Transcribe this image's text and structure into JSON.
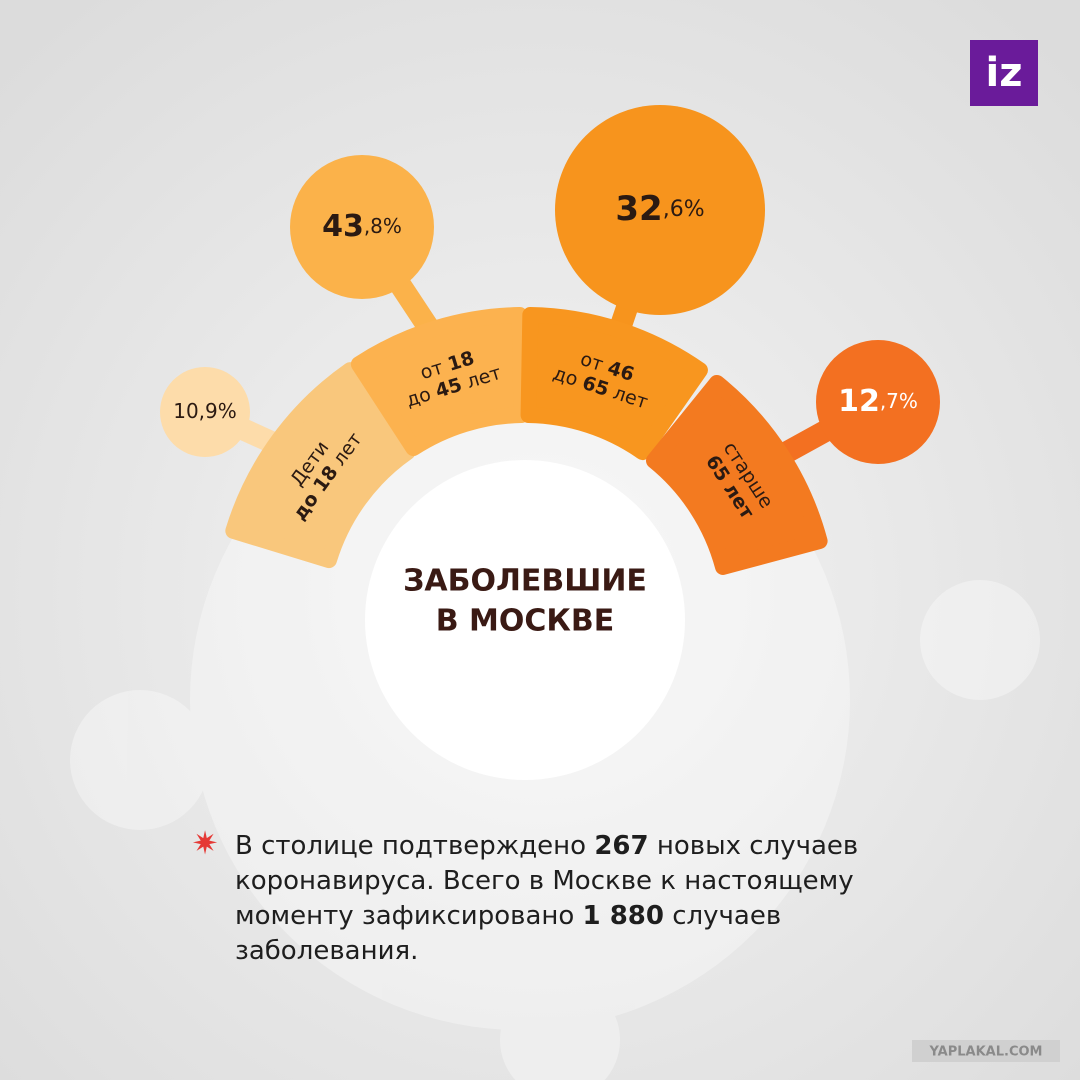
{
  "logo": "iz",
  "title": [
    "ЗАБОЛЕВШИЕ",
    "В МОСКВЕ"
  ],
  "groups": [
    {
      "value": [
        {
          "t": "10,9%",
          "b": false
        }
      ],
      "label": [
        [
          {
            "t": "Дети",
            "b": false
          }
        ],
        [
          {
            "t": "до 18",
            "b": true
          },
          {
            "t": " лет",
            "b": false
          }
        ]
      ]
    },
    {
      "value": [
        {
          "t": "43",
          "b": true
        },
        {
          "t": ",8%",
          "b": false
        }
      ],
      "label": [
        [
          {
            "t": "от ",
            "b": false
          },
          {
            "t": "18",
            "b": true
          }
        ],
        [
          {
            "t": "до ",
            "b": false
          },
          {
            "t": "45",
            "b": true
          },
          {
            "t": " лет",
            "b": false
          }
        ]
      ]
    },
    {
      "value": [
        {
          "t": "32",
          "b": true
        },
        {
          "t": ",6%",
          "b": false
        }
      ],
      "label": [
        [
          {
            "t": "от ",
            "b": false
          },
          {
            "t": "46",
            "b": true
          }
        ],
        [
          {
            "t": "до ",
            "b": false
          },
          {
            "t": "65",
            "b": true
          },
          {
            "t": " лет",
            "b": false
          }
        ]
      ]
    },
    {
      "value": [
        {
          "t": "12",
          "b": true
        },
        {
          "t": ",7%",
          "b": false
        }
      ],
      "label": [
        [
          {
            "t": "старше",
            "b": false
          }
        ],
        [
          {
            "t": "65 лет",
            "b": true
          }
        ]
      ]
    }
  ],
  "note": [
    [
      {
        "t": "В столице подтверждено ",
        "b": false
      },
      {
        "t": "267",
        "b": true
      },
      {
        "t": " новых случаев",
        "b": false
      }
    ],
    [
      {
        "t": "коронавируса. Всего в Москве к настоящему",
        "b": false
      }
    ],
    [
      {
        "t": "моменту зафиксировано ",
        "b": false
      },
      {
        "t": "1 880",
        "b": true
      },
      {
        "t": " случаев",
        "b": false
      }
    ],
    [
      {
        "t": "заболевания.",
        "b": false
      }
    ]
  ],
  "watermark": "YAPLAKAL.COM"
}
